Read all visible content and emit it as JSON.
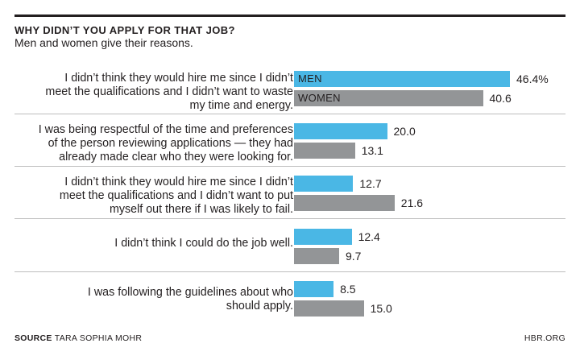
{
  "header": {
    "title": "WHY DIDN’T YOU APPLY FOR THAT JOB?",
    "subtitle": "Men and women give their reasons."
  },
  "footer": {
    "source_label": "SOURCE",
    "source_text": "TARA SOPHIA MOHR",
    "brand": "HBR.ORG"
  },
  "colors": {
    "men": "#4ab7e5",
    "women": "#939597"
  },
  "chart_data": {
    "type": "bar",
    "orientation": "horizontal",
    "categories": [
      [
        "I didn’t think they would hire me since I didn’t",
        "meet the qualifications and I didn’t want to waste",
        "my time and energy."
      ],
      [
        "I was being respectful of the time and preferences",
        "of the person reviewing applications — they had",
        "already made clear who they were looking for."
      ],
      [
        "I didn’t think they would hire me since I didn’t",
        "meet the qualifications and I didn’t want to put",
        "myself out there if I was likely to fail."
      ],
      [
        "I didn’t think I could do the job well."
      ],
      [
        "I was following the guidelines about who",
        "should apply."
      ]
    ],
    "series": [
      {
        "name": "MEN",
        "values": [
          46.4,
          20.0,
          12.7,
          12.4,
          8.5
        ],
        "labels": [
          "46.4%",
          "20.0",
          "12.7",
          "12.4",
          "8.5"
        ]
      },
      {
        "name": "WOMEN",
        "values": [
          40.6,
          13.1,
          21.6,
          9.7,
          15.0
        ],
        "labels": [
          "40.6",
          "13.1",
          "21.6",
          "9.7",
          "15.0"
        ]
      }
    ],
    "xlim": [
      0,
      46.4
    ],
    "grid": false,
    "legend": "inside-first-bars"
  }
}
